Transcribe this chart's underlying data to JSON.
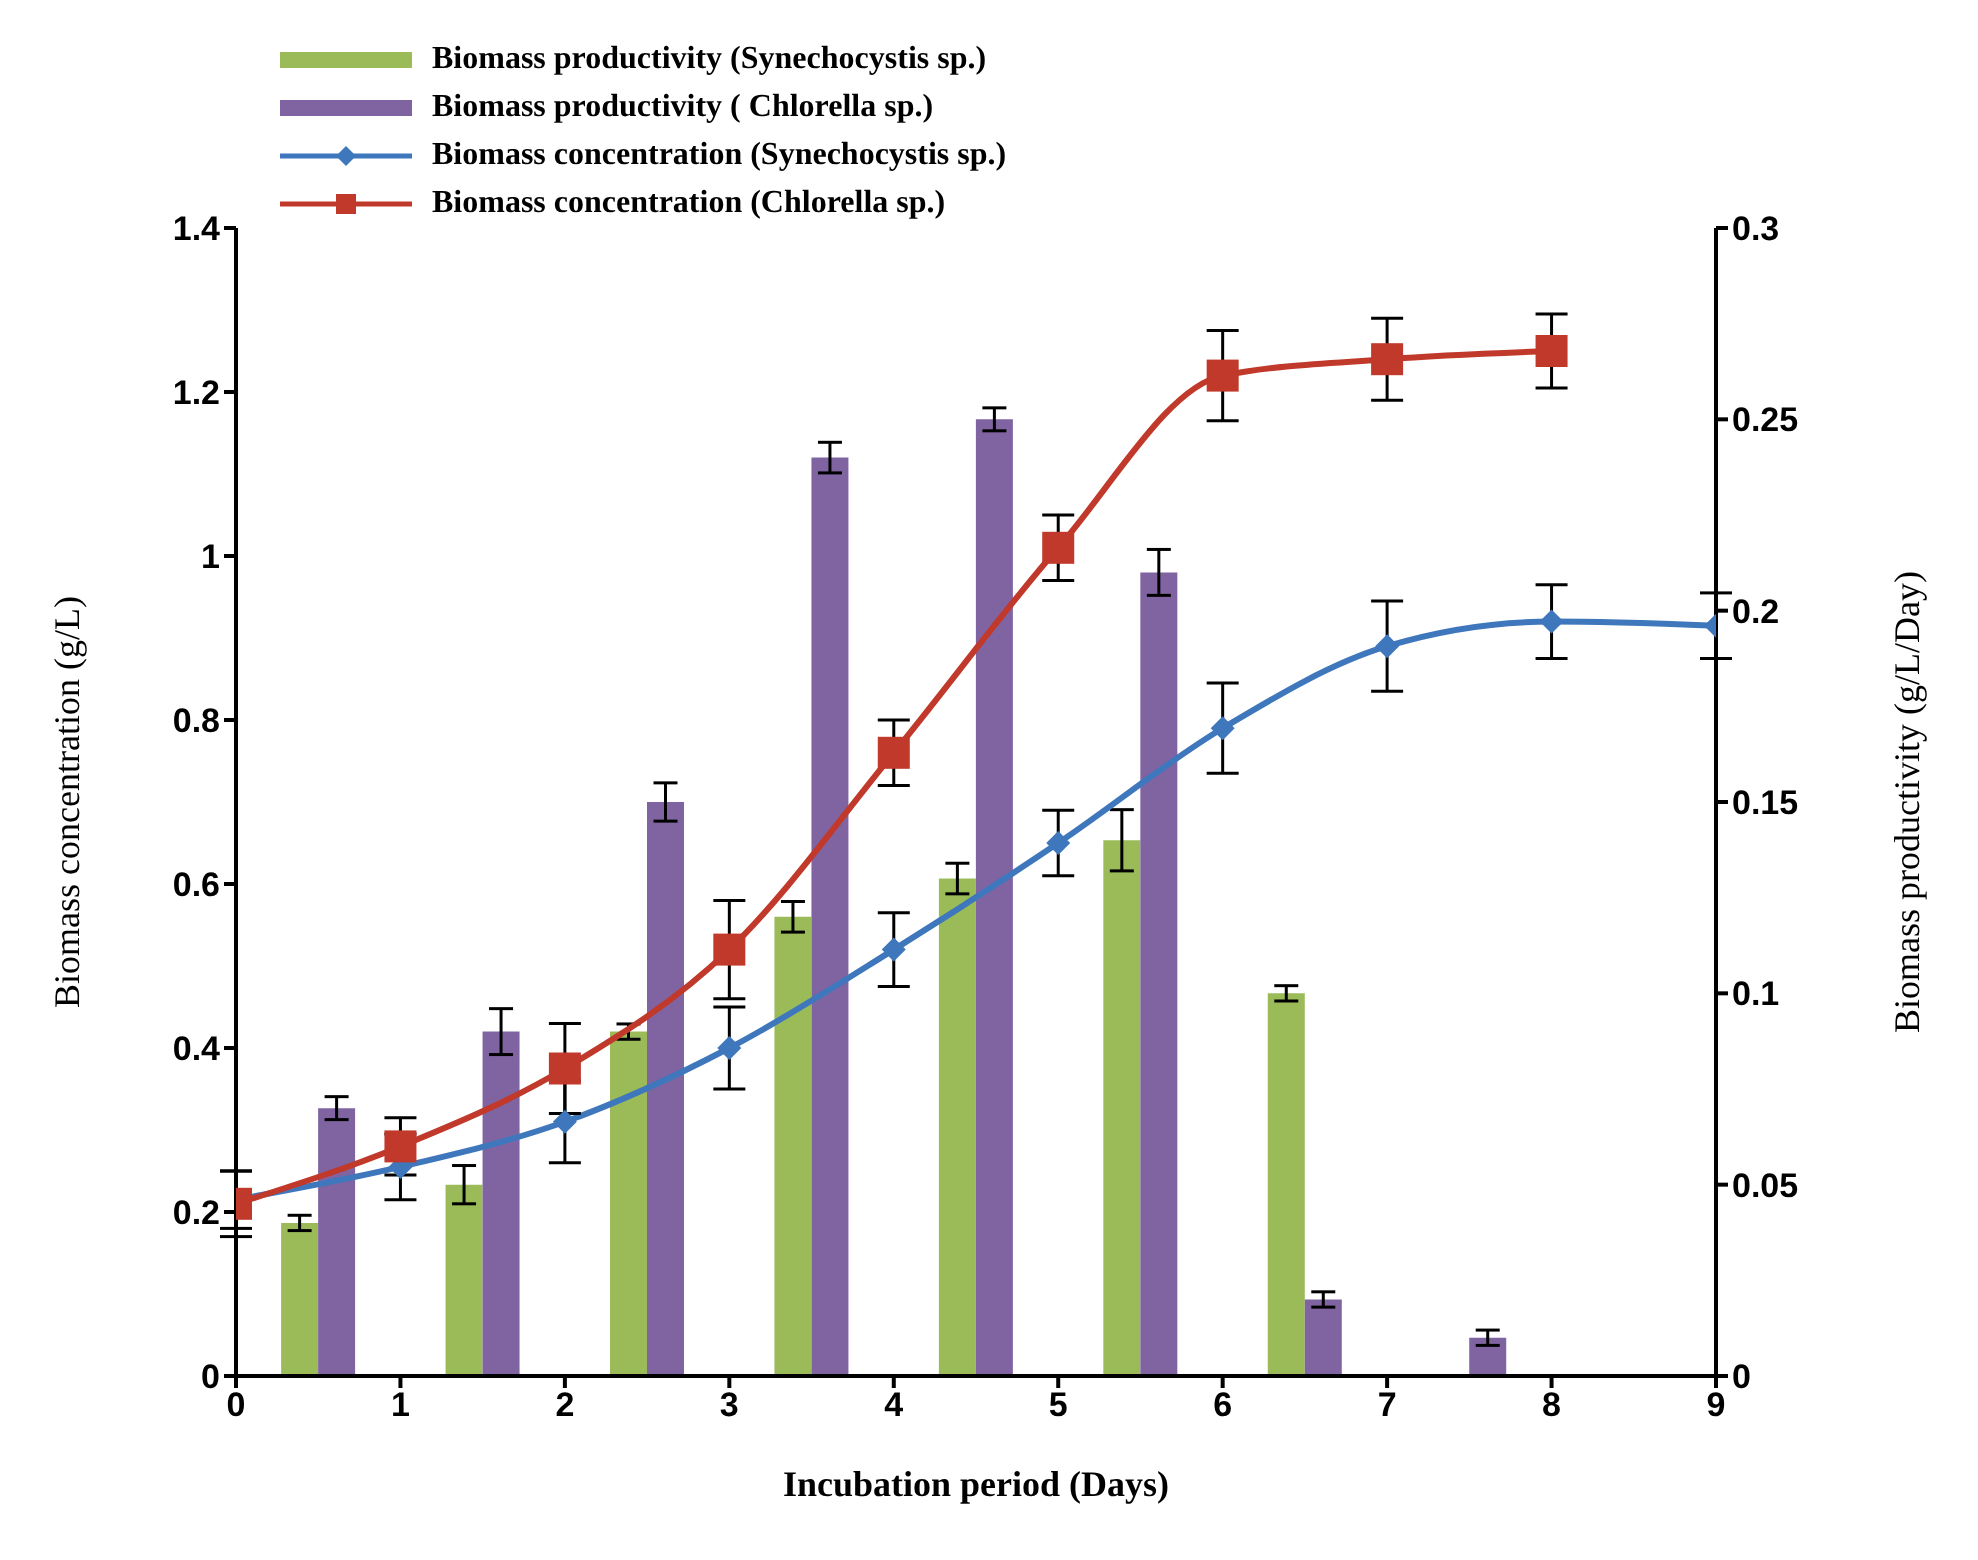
{
  "chart_data": {
    "type": "line",
    "xlabel": "Incubation period (Days)",
    "ylabel": "Biomass concentration  (g/L)",
    "y2label": "Biomass productivity  (g/L/Day)",
    "xlim": [
      0,
      9
    ],
    "xticks": [
      0,
      1,
      2,
      3,
      4,
      5,
      6,
      7,
      8,
      9
    ],
    "ylim": [
      0,
      1.4
    ],
    "yticks": [
      0,
      0.2,
      0.4,
      0.6,
      0.8,
      1,
      1.2,
      1.4
    ],
    "y2lim": [
      0,
      0.3
    ],
    "y2ticks": [
      0,
      0.05,
      0.1,
      0.15,
      0.2,
      0.25,
      0.3
    ],
    "legend": "top left",
    "series": [
      {
        "name": "Biomass productivity (Synechocystis sp.)",
        "type": "bar",
        "axis": "y2",
        "color": "#9bbb59",
        "x": [
          0.5,
          1.5,
          2.5,
          3.5,
          4.5,
          5.5,
          6.5
        ],
        "values": [
          0.04,
          0.05,
          0.09,
          0.12,
          0.13,
          0.14,
          0.1
        ],
        "errors": [
          0.002,
          0.005,
          0.002,
          0.004,
          0.004,
          0.008,
          0.002
        ]
      },
      {
        "name": "Biomass productivity ( Chlorella sp.)",
        "type": "bar",
        "axis": "y2",
        "color": "#8064a2",
        "x": [
          0.5,
          1.5,
          2.5,
          3.5,
          4.5,
          5.5,
          6.5,
          7.5
        ],
        "values": [
          0.07,
          0.09,
          0.15,
          0.24,
          0.25,
          0.21,
          0.02,
          0.01
        ],
        "errors": [
          0.003,
          0.006,
          0.005,
          0.004,
          0.003,
          0.006,
          0.002,
          0.002
        ]
      },
      {
        "name": "Biomass concentration  (Synechocystis  sp.)",
        "marker": "diamond",
        "color": "#3f77bd",
        "x": [
          0,
          1,
          2,
          3,
          4,
          5,
          6,
          7,
          8,
          9
        ],
        "values": [
          0.215,
          0.255,
          0.31,
          0.4,
          0.52,
          0.65,
          0.79,
          0.89,
          0.92,
          0.915
        ],
        "errors": [
          0.035,
          0.04,
          0.05,
          0.05,
          0.045,
          0.04,
          0.055,
          0.055,
          0.045,
          0.04
        ]
      },
      {
        "name": "Biomass concentration  (Chlorella sp.)",
        "marker": "square",
        "color": "#c0392b",
        "x": [
          0,
          1,
          2,
          3,
          4,
          5,
          6,
          7,
          8
        ],
        "values": [
          0.21,
          0.28,
          0.375,
          0.52,
          0.76,
          1.01,
          1.22,
          1.24,
          1.25
        ],
        "errors": [
          0.04,
          0.035,
          0.055,
          0.06,
          0.04,
          0.04,
          0.055,
          0.05,
          0.045
        ]
      }
    ]
  }
}
